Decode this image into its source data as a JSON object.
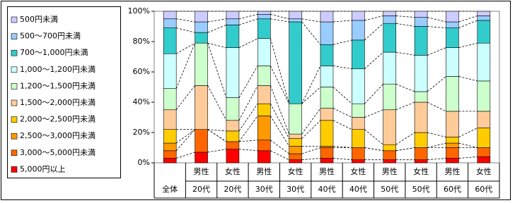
{
  "chart_data": {
    "type": "stacked_bar_100",
    "categories": [
      [
        "全体"
      ],
      [
        "男性",
        "20代"
      ],
      [
        "女性",
        "20代"
      ],
      [
        "男性",
        "30代"
      ],
      [
        "女性",
        "30代"
      ],
      [
        "男性",
        "40代"
      ],
      [
        "女性",
        "40代"
      ],
      [
        "男性",
        "50代"
      ],
      [
        "女性",
        "50代"
      ],
      [
        "男性",
        "60代"
      ],
      [
        "女性",
        "60代"
      ]
    ],
    "series": [
      {
        "name": "5,000円以上",
        "color": "#ff0000",
        "values": [
          3,
          7,
          9,
          8,
          2,
          3,
          2,
          2,
          2,
          3,
          4
        ]
      },
      {
        "name": "3,000～5,000円未満",
        "color": "#ff6600",
        "values": [
          5,
          15,
          5,
          7,
          4,
          7,
          8,
          6,
          8,
          7,
          6
        ]
      },
      {
        "name": "2,500～3,000円未満",
        "color": "#ff9900",
        "values": [
          5,
          0,
          0,
          16,
          5,
          1,
          0,
          0,
          0,
          3,
          0
        ]
      },
      {
        "name": "2,000～2,500円未満",
        "color": "#ffcc00",
        "values": [
          9,
          0,
          7,
          8,
          5,
          17,
          12,
          4,
          10,
          4,
          13
        ]
      },
      {
        "name": "1,500～2,000円未満",
        "color": "#ffcc99",
        "values": [
          13,
          29,
          7,
          12,
          3,
          8,
          8,
          23,
          20,
          17,
          11
        ]
      },
      {
        "name": "1,200～1,500円未満",
        "color": "#ccffcc",
        "values": [
          14,
          28,
          15,
          13,
          20,
          14,
          9,
          17,
          7,
          23,
          20
        ]
      },
      {
        "name": "1,000～1,200円未満",
        "color": "#ccffff",
        "values": [
          23,
          0,
          33,
          18,
          0,
          14,
          23,
          21,
          24,
          19,
          25
        ]
      },
      {
        "name": "700～1,000円未満",
        "color": "#33cccc",
        "values": [
          17,
          7,
          15,
          13,
          54,
          14,
          19,
          19,
          19,
          13,
          15
        ]
      },
      {
        "name": "500～700円未満",
        "color": "#99ccff",
        "values": [
          6,
          7,
          4,
          3,
          2,
          15,
          13,
          5,
          6,
          4,
          3
        ]
      },
      {
        "name": "500円未満",
        "color": "#ccccff",
        "values": [
          5,
          7,
          5,
          2,
          5,
          7,
          6,
          3,
          4,
          7,
          3
        ]
      }
    ],
    "ylim": [
      0,
      100
    ],
    "yticks": [
      {
        "value": 0,
        "label": "0%"
      },
      {
        "value": 20,
        "label": "20%"
      },
      {
        "value": 40,
        "label": "40%"
      },
      {
        "value": 60,
        "label": "60%"
      },
      {
        "value": 80,
        "label": "80%"
      },
      {
        "value": 100,
        "label": "100%"
      }
    ],
    "legend": "left"
  }
}
